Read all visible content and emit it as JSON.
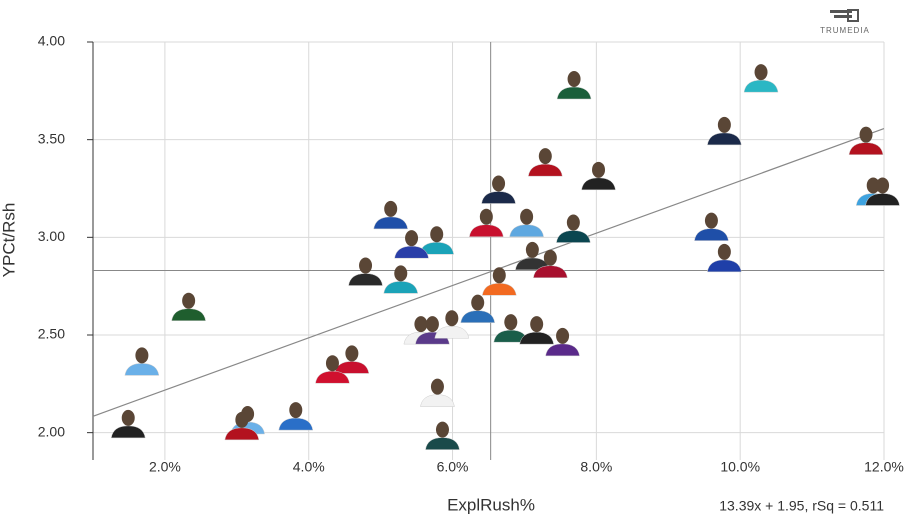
{
  "chart_data": {
    "type": "scatter",
    "x_label": "ExplRush%",
    "y_label": "YPCt/Rsh",
    "brand": "TRUMEDIA",
    "trend_label": "13.39x + 1.95, rSq = 0.511",
    "trend": {
      "slope": 13.39,
      "intercept": 1.95
    },
    "x_ref": 6.53,
    "y_ref": 2.83,
    "xlim": [
      1,
      12
    ],
    "ylim": [
      1.86,
      4.0
    ],
    "xticks": [
      {
        "value": 2,
        "label": "2.0%"
      },
      {
        "value": 4,
        "label": "4.0%"
      },
      {
        "value": 6,
        "label": "6.0%"
      },
      {
        "value": 8,
        "label": "8.0%"
      },
      {
        "value": 10,
        "label": "10.0%"
      },
      {
        "value": 12,
        "label": "12.0%"
      }
    ],
    "yticks": [
      {
        "value": 2,
        "label": "2.00"
      },
      {
        "value": 2.5,
        "label": "2.50"
      },
      {
        "value": 3,
        "label": "3.00"
      },
      {
        "value": 3.5,
        "label": "3.50"
      },
      {
        "value": 4,
        "label": "4.00"
      }
    ],
    "grid": true,
    "x": [
      7.69,
      10.29,
      9.78,
      11.75,
      11.85,
      11.98,
      7.29,
      8.03,
      6.64,
      5.14,
      6.47,
      7.03,
      7.68,
      5.78,
      5.43,
      9.6,
      9.78,
      7.11,
      7.36,
      4.79,
      5.28,
      6.65,
      2.33,
      6.35,
      5.56,
      5.72,
      5.99,
      6.81,
      7.17,
      7.53,
      4.6,
      4.33,
      1.68,
      5.79,
      1.49,
      3.15,
      3.07,
      3.82,
      5.86
    ],
    "y": [
      3.785,
      3.82,
      3.55,
      3.5,
      3.24,
      3.24,
      3.39,
      3.32,
      3.25,
      3.12,
      3.08,
      3.08,
      3.05,
      2.99,
      2.97,
      3.06,
      2.9,
      2.91,
      2.87,
      2.83,
      2.79,
      2.78,
      2.65,
      2.64,
      2.53,
      2.53,
      2.56,
      2.54,
      2.53,
      2.47,
      2.38,
      2.33,
      2.37,
      2.21,
      2.05,
      2.07,
      2.04,
      2.09,
      1.99
    ],
    "colors": [
      "#1a5e3a",
      "#2bb7c4",
      "#1b2a4a",
      "#b3121f",
      "#3ea3e0",
      "#222222",
      "#b3121f",
      "#222222",
      "#1b2a4a",
      "#1f4fa8",
      "#c8102e",
      "#5fa8e0",
      "#0b4650",
      "#1ba3b8",
      "#2a3fa8",
      "#1f4fa8",
      "#1f3fa8",
      "#333333",
      "#a8102e",
      "#2a2a2a",
      "#1ba3b8",
      "#f26a21",
      "#1f5e2e",
      "#2a6fb8",
      "#f2f2f2",
      "#5a3a8a",
      "#f2f2f2",
      "#1a5e4a",
      "#222222",
      "#5a2a8a",
      "#c8102e",
      "#d0102e",
      "#6ab0e8",
      "#f2f2f2",
      "#222222",
      "#6ab0e8",
      "#b3121f",
      "#2a6fc8",
      "#1a4a4a"
    ]
  }
}
